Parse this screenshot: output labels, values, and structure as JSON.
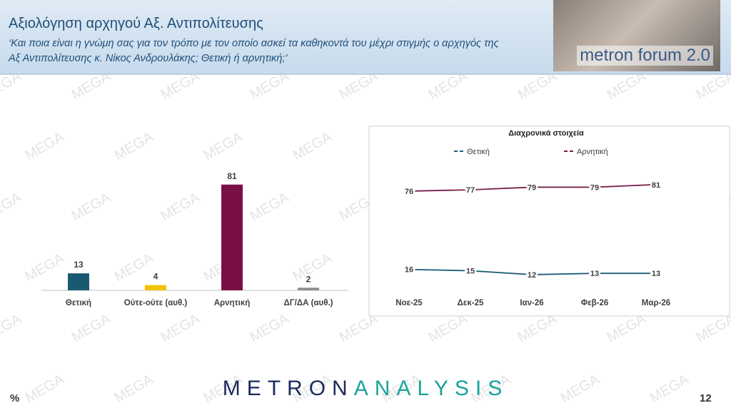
{
  "header": {
    "title": "Αξιολόγηση αρχηγού Αξ. Αντιπολίτευσης",
    "subtitle": "‘Και ποια είναι η γνώμη σας για τον τρόπο με τον οποίο ασκεί τα καθηκοντά του μέχρι στιγμής ο αρχηγός της Αξ Αντιπολίτευσης κ. Νίκος Ανδρουλάκης; Θετική ή αρνητική;’",
    "logo_text": "metron forum 2.0"
  },
  "watermark": "MEGA",
  "chart_data": [
    {
      "type": "bar",
      "categories": [
        "Θετική",
        "Ούτε-ούτε (αυθ.)",
        "Αρνητική",
        "ΔΓ/ΔΑ (αυθ.)"
      ],
      "values": [
        13,
        4,
        81,
        2
      ],
      "colors": [
        "#1a5a70",
        "#f2c300",
        "#7a0f45",
        "#8c8c8c"
      ]
    },
    {
      "type": "line",
      "title": "Διαχρονικά στοιχεία",
      "categories": [
        "Νοε-25",
        "Δεκ-25",
        "Ιαν-26",
        "Φεβ-26",
        "Μαρ-26"
      ],
      "series": [
        {
          "name": "Θετική",
          "color": "#1f5f7a",
          "values": [
            16,
            15,
            12,
            13,
            13
          ]
        },
        {
          "name": "Αρνητική",
          "color": "#7a1e4a",
          "values": [
            76,
            77,
            79,
            79,
            81
          ]
        }
      ]
    }
  ],
  "footer": {
    "brand_1": "METRON",
    "brand_2": "ANALYSIS",
    "unit": "%",
    "page": "12"
  }
}
